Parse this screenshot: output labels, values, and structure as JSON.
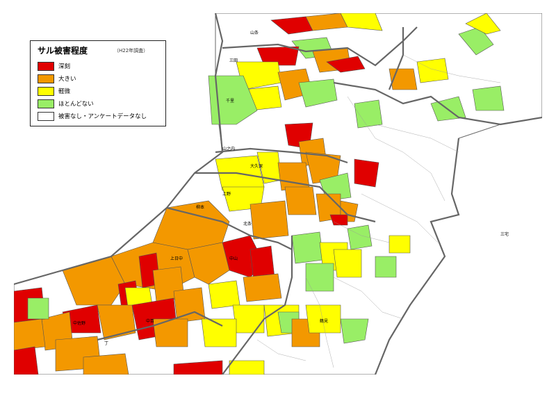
{
  "legend": {
    "title": "サル被害程度",
    "survey": "（H22年調査）",
    "items": [
      {
        "label": "深刻",
        "color": "#e00000"
      },
      {
        "label": "大きい",
        "color": "#f39800"
      },
      {
        "label": "軽微",
        "color": "#ffff00"
      },
      {
        "label": "ほとんどない",
        "color": "#99ee66"
      },
      {
        "label": "被害なし・アンケートデータなし",
        "color": "#ffffff"
      }
    ]
  },
  "areas": {
    "north": "山条",
    "sanda": "三田",
    "kita": "千里",
    "midori": "山之内",
    "ueno": "上野",
    "nishi": "柳本",
    "kamihino": "上日中",
    "nakahino": "中山",
    "minami": "中佐野",
    "tanaka": "中百",
    "ryuko": "丁",
    "kasuga": "鶴見",
    "kadono": "大久保",
    "shiratori": "北条",
    "takahama": "三宅"
  }
}
